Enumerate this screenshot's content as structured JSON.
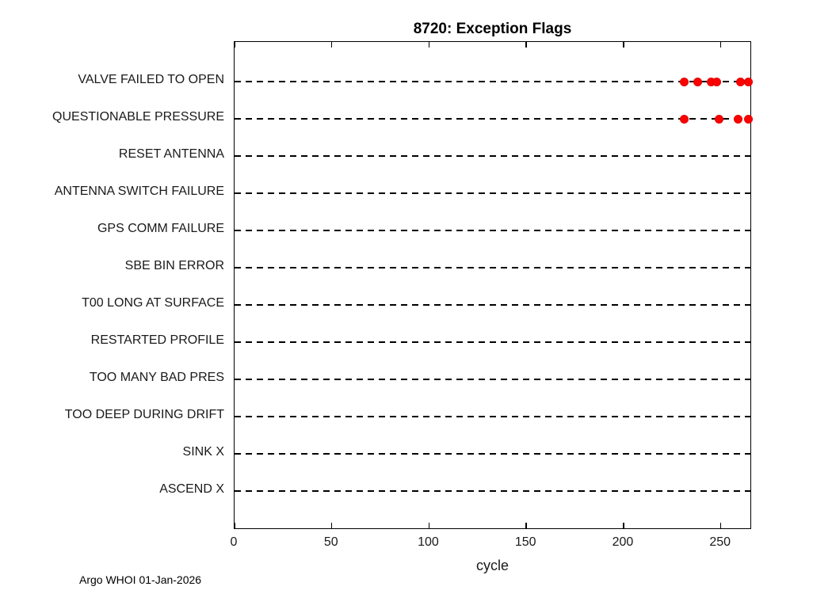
{
  "title": "8720: Exception Flags",
  "footer": "Argo WHOI 01-Jan-2026",
  "chart_data": {
    "type": "scatter",
    "title": "8720: Exception Flags",
    "xlabel": "cycle",
    "ylabel": "",
    "xlim": [
      0,
      266
    ],
    "xticks": [
      0,
      50,
      100,
      150,
      200,
      250
    ],
    "grid": "dashed-horizontal-row-lines",
    "legend": "none",
    "marker": {
      "shape": "filled-circle",
      "color": "#ff0000"
    },
    "categories": [
      "VALVE FAILED TO OPEN",
      "QUESTIONABLE PRESSURE",
      "RESET ANTENNA",
      "ANTENNA SWITCH FAILURE",
      "GPS COMM FAILURE",
      "SBE BIN ERROR",
      "T00 LONG AT SURFACE",
      "RESTARTED PROFILE",
      "TOO MANY BAD PRES",
      "TOO DEEP DURING DRIFT",
      "SINK X",
      "ASCEND X"
    ],
    "series": [
      {
        "name": "VALVE FAILED TO OPEN",
        "x": [
          231,
          238,
          245,
          248,
          260,
          264
        ]
      },
      {
        "name": "QUESTIONABLE PRESSURE",
        "x": [
          231,
          249,
          259,
          264
        ]
      },
      {
        "name": "RESET ANTENNA",
        "x": []
      },
      {
        "name": "ANTENNA SWITCH FAILURE",
        "x": []
      },
      {
        "name": "GPS COMM FAILURE",
        "x": []
      },
      {
        "name": "SBE BIN ERROR",
        "x": []
      },
      {
        "name": "T00 LONG AT SURFACE",
        "x": []
      },
      {
        "name": "RESTARTED PROFILE",
        "x": []
      },
      {
        "name": "TOO MANY BAD PRES",
        "x": []
      },
      {
        "name": "TOO DEEP DURING DRIFT",
        "x": []
      },
      {
        "name": "SINK X",
        "x": []
      },
      {
        "name": "ASCEND X",
        "x": []
      }
    ]
  }
}
